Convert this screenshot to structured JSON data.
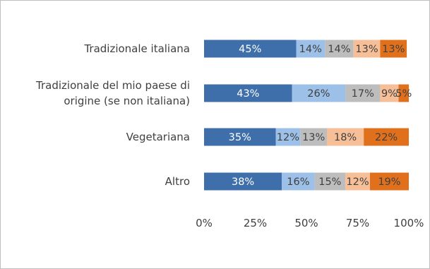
{
  "chart_data": {
    "type": "bar",
    "orientation": "horizontal",
    "stacked": "percent",
    "categories": [
      [
        "Tradizionale italiana"
      ],
      [
        "Tradizionale del mio paese di",
        "origine (se non italiana)"
      ],
      [
        "Vegetariana"
      ],
      [
        "Altro"
      ]
    ],
    "series": [
      {
        "values": [
          45,
          43,
          35,
          38
        ],
        "labels": [
          "45%",
          "43%",
          "35%",
          "38%"
        ],
        "color": "#3f6faa",
        "label_color": "#ffffff"
      },
      {
        "values": [
          14,
          26,
          12,
          16
        ],
        "labels": [
          "14%",
          "26%",
          "12%",
          "16%"
        ],
        "color": "#9dc0e8",
        "label_color": "#404040"
      },
      {
        "values": [
          14,
          17,
          13,
          15
        ],
        "labels": [
          "14%",
          "17%",
          "13%",
          "15%"
        ],
        "color": "#bdbdbd",
        "label_color": "#404040"
      },
      {
        "values": [
          13,
          9,
          18,
          12
        ],
        "labels": [
          "13%",
          "9%",
          "18%",
          "12%"
        ],
        "color": "#f6bf97",
        "label_color": "#404040"
      },
      {
        "values": [
          13,
          5,
          22,
          19
        ],
        "labels": [
          "13%",
          "5%",
          "22%",
          "19%"
        ],
        "color": "#e1701c",
        "label_color": "#404040"
      }
    ],
    "xlim": [
      0,
      100
    ],
    "xticks": [
      "0%",
      "25%",
      "50%",
      "75%",
      "100%"
    ],
    "grid": false,
    "legend": "none"
  }
}
